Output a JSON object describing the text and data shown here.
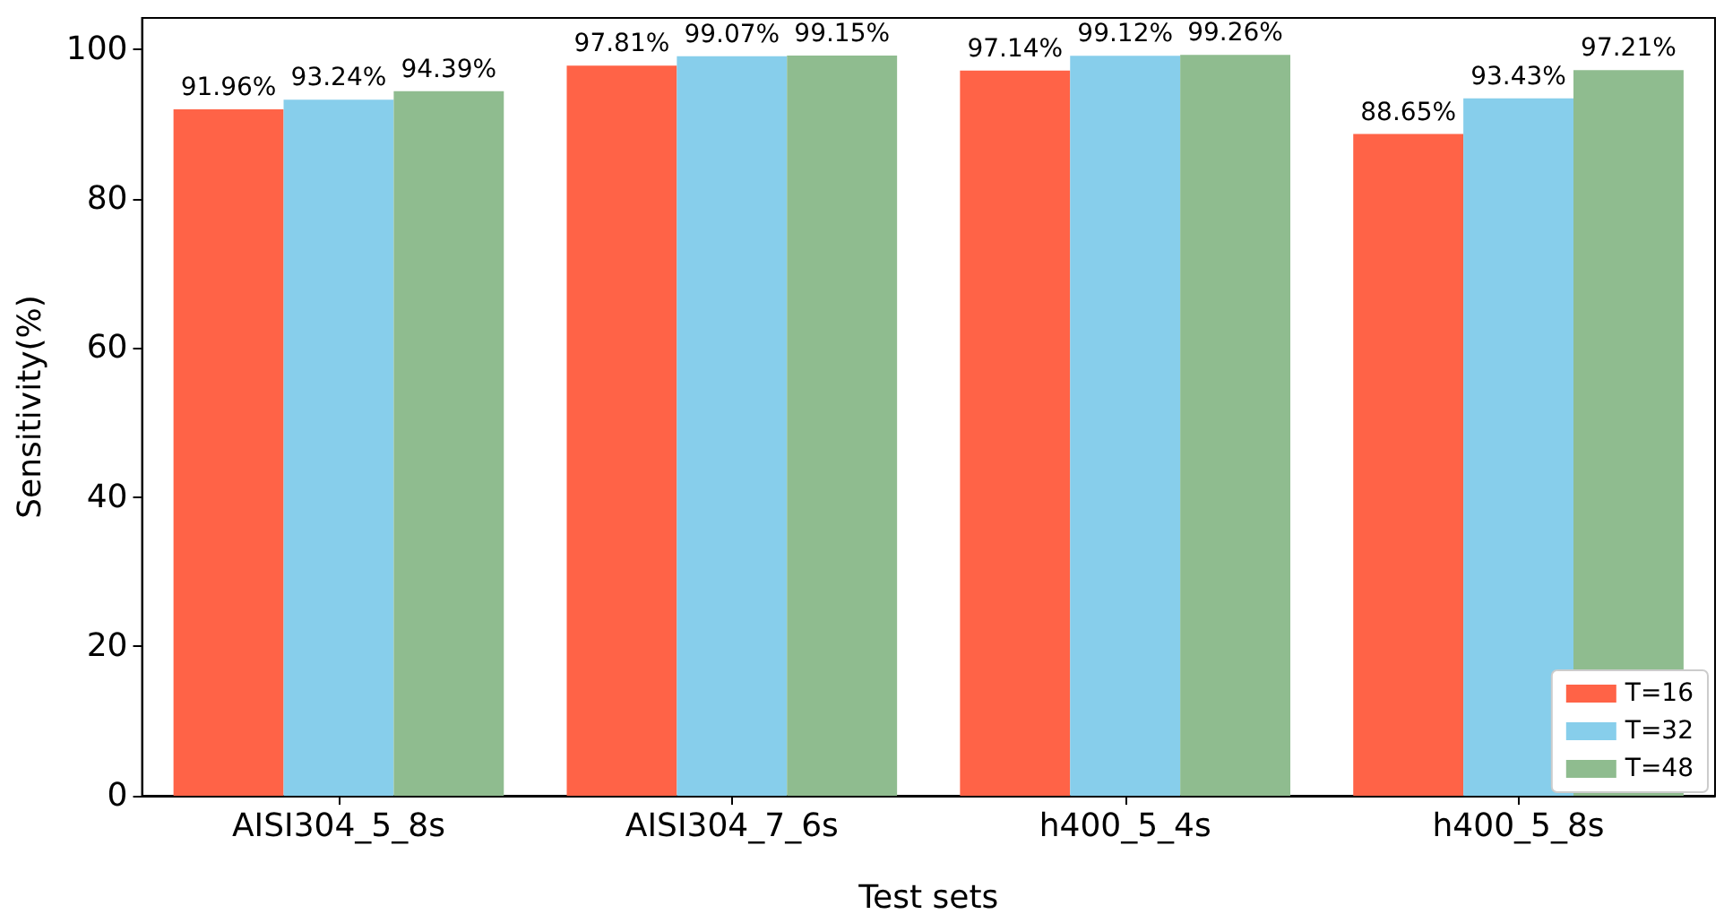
{
  "chart_data": {
    "type": "bar",
    "xlabel": "Test sets",
    "ylabel": "Sensitivity(%)",
    "categories": [
      "AISI304_5_8s",
      "AISI304_7_6s",
      "h400_5_4s",
      "h400_5_8s"
    ],
    "series": [
      {
        "name": "T=16",
        "color": "#ff6347",
        "values": [
          91.96,
          97.81,
          97.14,
          88.65
        ],
        "value_labels": [
          "91.96%",
          "97.81%",
          "97.14%",
          "88.65%"
        ]
      },
      {
        "name": "T=32",
        "color": "#87ceeb",
        "values": [
          93.24,
          99.07,
          99.12,
          93.43
        ],
        "value_labels": [
          "93.24%",
          "99.07%",
          "99.12%",
          "93.43%"
        ]
      },
      {
        "name": "T=48",
        "color": "#8fbc8f",
        "values": [
          94.39,
          99.15,
          99.26,
          97.21
        ],
        "value_labels": [
          "94.39%",
          "99.15%",
          "99.26%",
          "97.21%"
        ]
      }
    ],
    "ylim": [
      0,
      104.2
    ],
    "yticks": [
      0,
      20,
      40,
      60,
      80,
      100
    ],
    "grid": false,
    "legend": "bottom right"
  }
}
